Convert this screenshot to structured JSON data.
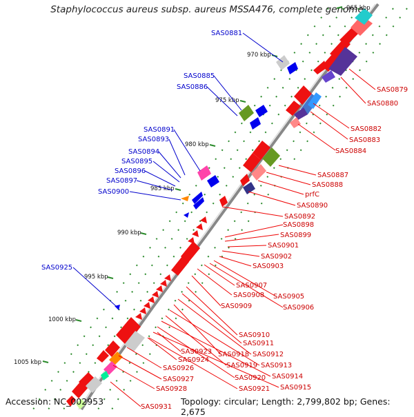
{
  "title": "Staphylococcus aureus subsp. aureus MSSA476, complete genome",
  "accession": "Accession: NC_002953",
  "topology": "Topology: circular; Length: 2,799,802 bp; Genes: 2,675",
  "ticks": [
    "965 kbp",
    "970 kbp",
    "975 kbp",
    "980 kbp",
    "985 kbp",
    "990 kbp",
    "995 kbp",
    "1000 kbp",
    "1005 kbp"
  ],
  "colors": {
    "forward_label": "#0000cc",
    "reverse_label": "#cc0000",
    "backbone": "#999999",
    "dots": "#2a8a2a"
  },
  "forward_labels": [
    "SAS0881",
    "SAS0885",
    "SAS0886",
    "SAS0891",
    "SAS0893",
    "SAS0894",
    "SAS0895",
    "SAS0896",
    "SAS0897",
    "SAS0900",
    "SAS0925"
  ],
  "reverse_labels": [
    "SAS0879",
    "SAS0880",
    "SAS0882",
    "SAS0883",
    "SAS0884",
    "SAS0887",
    "SAS0888",
    "prfC",
    "SAS0890",
    "SAS0892",
    "SAS0898",
    "SAS0899",
    "SAS0901",
    "SAS0902",
    "SAS0903",
    "SAS0907",
    "SAS0908",
    "SAS0905",
    "SAS0906",
    "SAS0909",
    "SAS0910",
    "SAS0911",
    "SAS0912",
    "SAS0918",
    "SAS0913",
    "SAS0919",
    "SAS0914",
    "SAS0920",
    "SAS0915",
    "SAS0921",
    "SAS0923",
    "SAS0924",
    "SAS0926",
    "SAS0927",
    "SAS0928",
    "SAS0931"
  ]
}
